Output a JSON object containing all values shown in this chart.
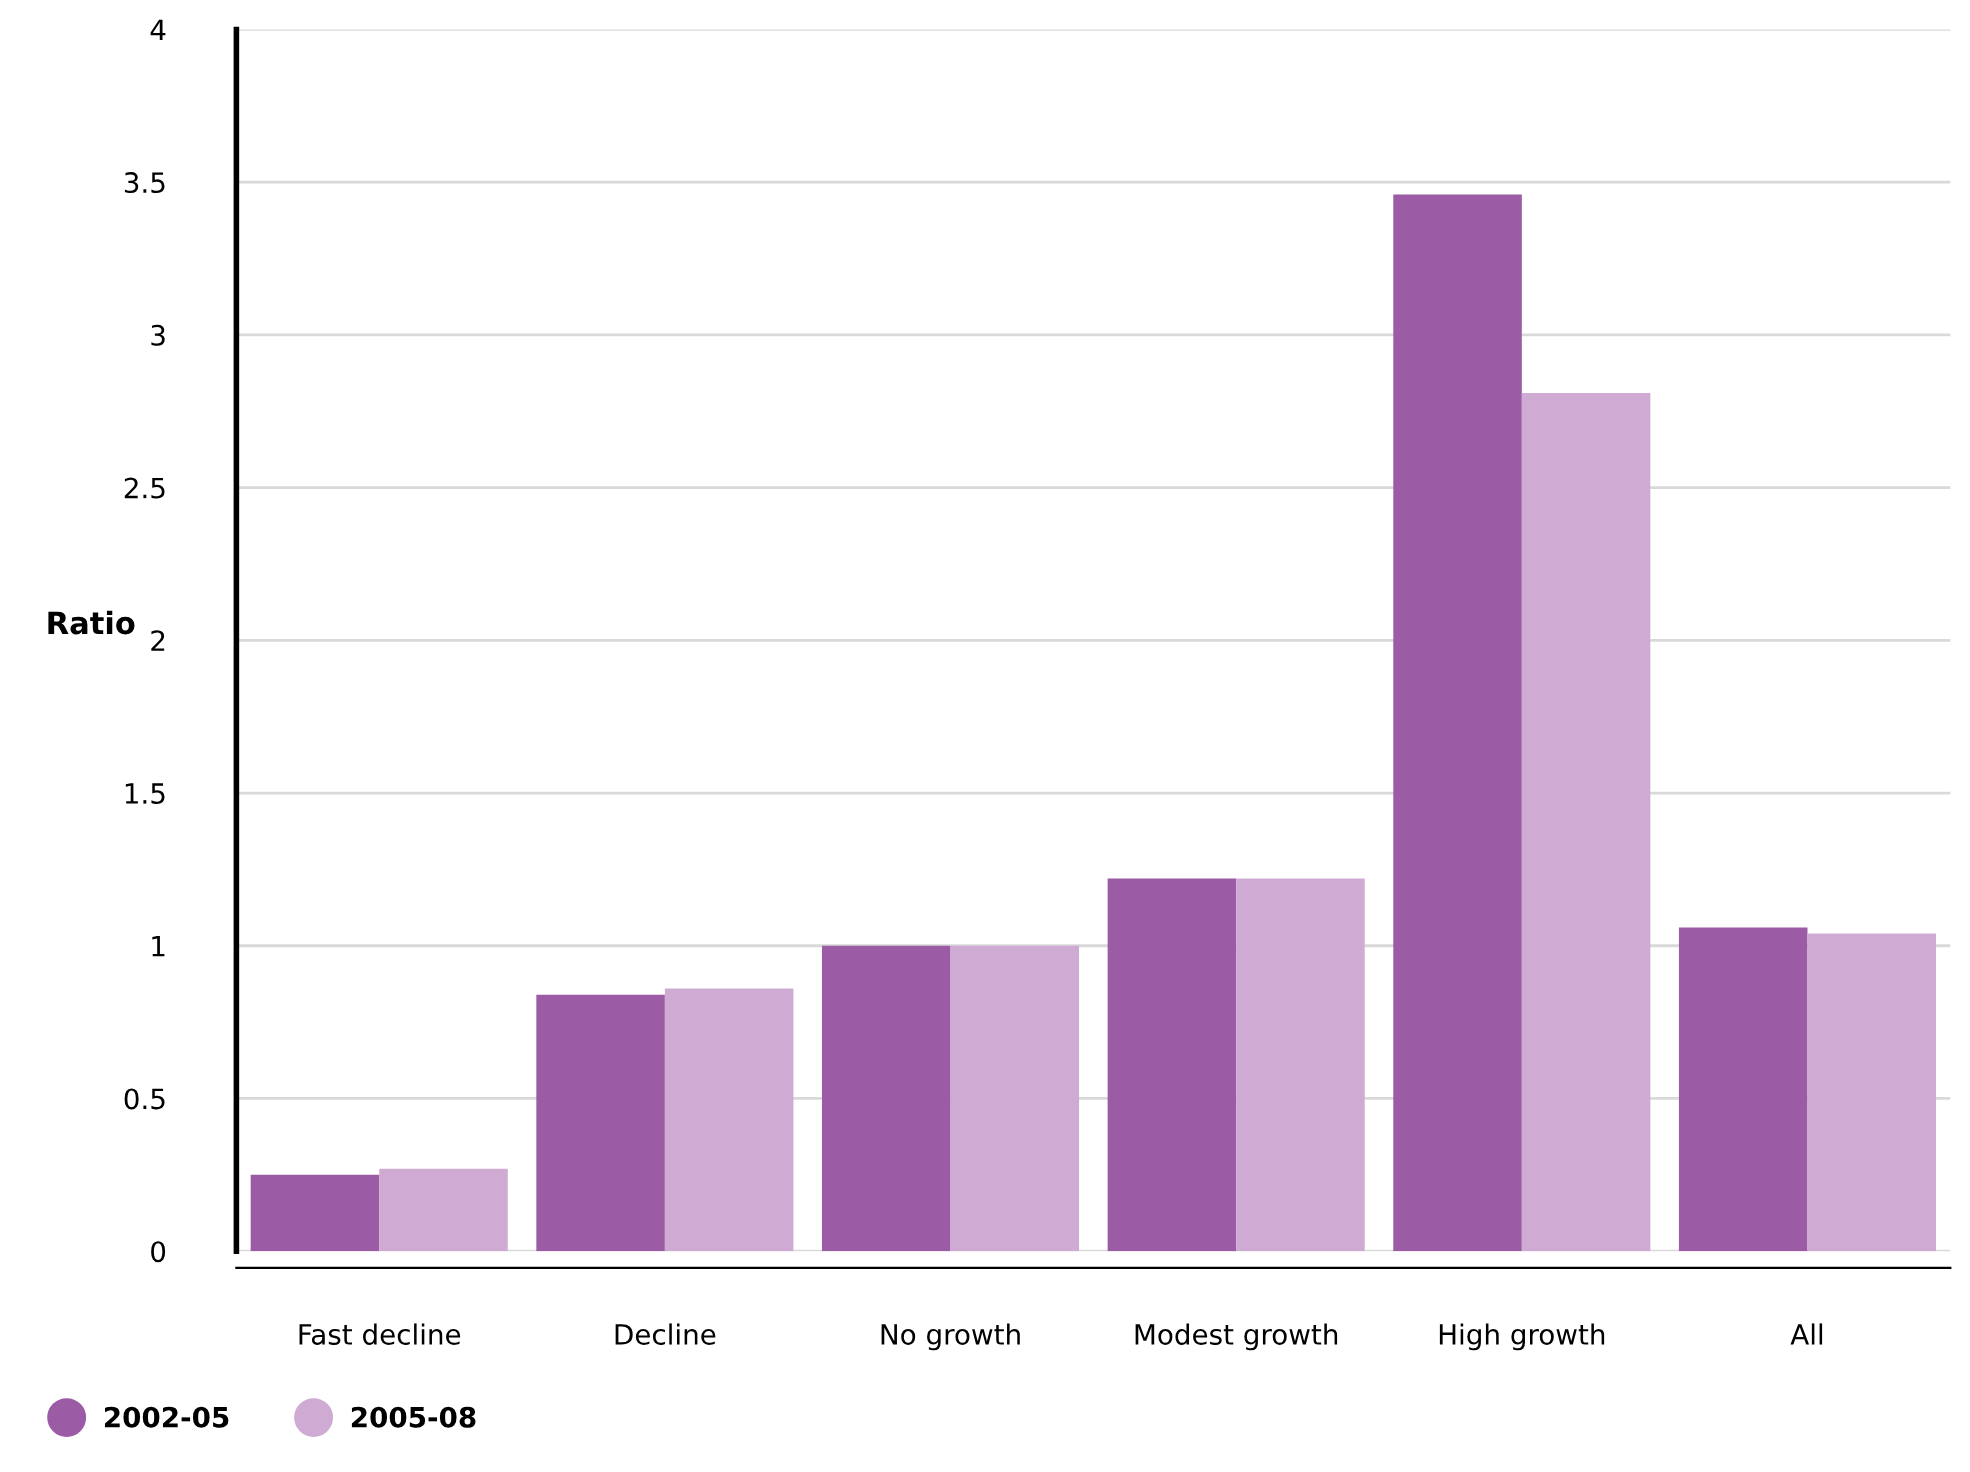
{
  "chart_data": {
    "type": "bar",
    "ylabel": "Ratio",
    "categories": [
      "Fast decline",
      "Decline",
      "No growth",
      "Modest growth",
      "High growth",
      "All"
    ],
    "series": [
      {
        "name": "2002-05",
        "color": "#9b5ba5",
        "values": [
          0.25,
          0.84,
          1.0,
          1.22,
          3.46,
          1.06
        ]
      },
      {
        "name": "2005-08",
        "color": "#cfabd3",
        "values": [
          0.27,
          0.86,
          1.0,
          1.22,
          2.81,
          1.04
        ]
      }
    ],
    "ylim": [
      0,
      4
    ],
    "yticks": [
      0,
      0.5,
      1,
      1.5,
      2,
      2.5,
      3,
      3.5,
      4
    ],
    "grid": "y",
    "legend": "bottom left"
  }
}
